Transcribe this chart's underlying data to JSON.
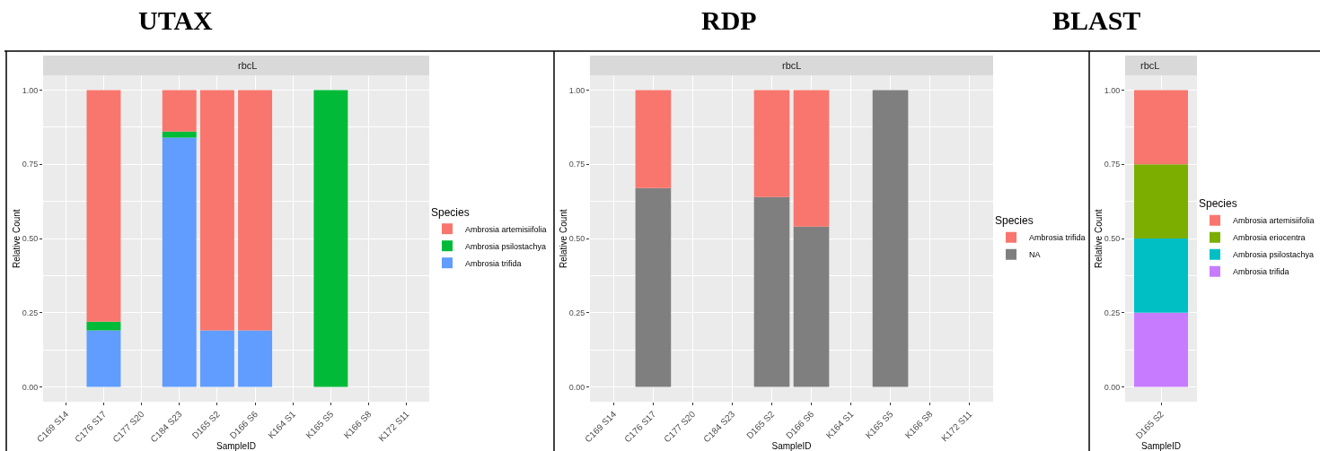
{
  "chart_data": [
    {
      "type": "bar",
      "title": "UTAX",
      "subtitle": "rbcL",
      "xlabel": "SampleID",
      "ylabel": "Relative Count",
      "legend_title": "Species",
      "stacked": true,
      "grid": true,
      "legend": "right",
      "categories": [
        "C169 S14",
        "C176 S17",
        "C177 S20",
        "C184 S23",
        "D165 S2",
        "D166 S6",
        "K164 S1",
        "K165 S5",
        "K166 S8",
        "K172 S11"
      ],
      "ylim": [
        -0.05,
        1.05
      ],
      "yticks": [
        {
          "value": 0,
          "label": "0.00"
        },
        {
          "value": 0.25,
          "label": "0.25"
        },
        {
          "value": 0.5,
          "label": "0.50"
        },
        {
          "value": 0.75,
          "label": "0.75"
        },
        {
          "value": 1,
          "label": "1.00"
        }
      ],
      "series": [
        {
          "name": "Ambrosia trifida",
          "color": "#619cff",
          "values": [
            null,
            0.19,
            null,
            0.84,
            0.19,
            0.19,
            null,
            null,
            null,
            null
          ]
        },
        {
          "name": "Ambrosia psilostachya",
          "color": "#00ba38",
          "values": [
            null,
            0.03,
            null,
            0.02,
            null,
            null,
            null,
            1,
            null,
            null
          ]
        },
        {
          "name": "Ambrosia artemisiifolia",
          "color": "#f8766d",
          "values": [
            null,
            0.78,
            null,
            0.14,
            0.81,
            0.81,
            null,
            null,
            null,
            null
          ]
        }
      ]
    },
    {
      "type": "bar",
      "title": "RDP",
      "subtitle": "rbcL",
      "xlabel": "SampleID",
      "ylabel": "Relative Count",
      "legend_title": "Species",
      "stacked": true,
      "grid": true,
      "legend": "right",
      "categories": [
        "C169 S14",
        "C176 S17",
        "C177 S20",
        "C184 S23",
        "D165 S2",
        "D166 S6",
        "K164 S1",
        "K165 S5",
        "K166 S8",
        "K172 S11"
      ],
      "ylim": [
        -0.05,
        1.05
      ],
      "yticks": [
        {
          "value": 0,
          "label": "0.00"
        },
        {
          "value": 0.25,
          "label": "0.25"
        },
        {
          "value": 0.5,
          "label": "0.50"
        },
        {
          "value": 0.75,
          "label": "0.75"
        },
        {
          "value": 1,
          "label": "1.00"
        }
      ],
      "series": [
        {
          "name": "NA",
          "color": "#7f7f7f",
          "values": [
            null,
            0.67,
            null,
            null,
            0.64,
            0.54,
            null,
            1,
            null,
            null
          ]
        },
        {
          "name": "Ambrosia trifida",
          "color": "#f8766d",
          "values": [
            null,
            0.33,
            null,
            null,
            0.36,
            0.46,
            null,
            null,
            null,
            null
          ]
        }
      ]
    },
    {
      "type": "bar",
      "title": "BLAST",
      "subtitle": "rbcL",
      "xlabel": "SampleID",
      "ylabel": "Relative Count",
      "legend_title": "Species",
      "stacked": true,
      "grid": true,
      "legend": "right",
      "categories": [
        "D165 S2"
      ],
      "ylim": [
        -0.05,
        1.05
      ],
      "yticks": [
        {
          "value": 0,
          "label": "0.00"
        },
        {
          "value": 0.25,
          "label": "0.25"
        },
        {
          "value": 0.5,
          "label": "0.50"
        },
        {
          "value": 0.75,
          "label": "0.75"
        },
        {
          "value": 1,
          "label": "1.00"
        }
      ],
      "series": [
        {
          "name": "Ambrosia trifida",
          "color": "#c77cff",
          "values": [
            0.25
          ]
        },
        {
          "name": "Ambrosia psilostachya",
          "color": "#00bfc4",
          "values": [
            0.25
          ]
        },
        {
          "name": "Ambrosia eriocentra",
          "color": "#7cae00",
          "values": [
            0.25
          ]
        },
        {
          "name": "Ambrosia artemisiifolia",
          "color": "#f8766d",
          "values": [
            0.25
          ]
        }
      ]
    }
  ]
}
